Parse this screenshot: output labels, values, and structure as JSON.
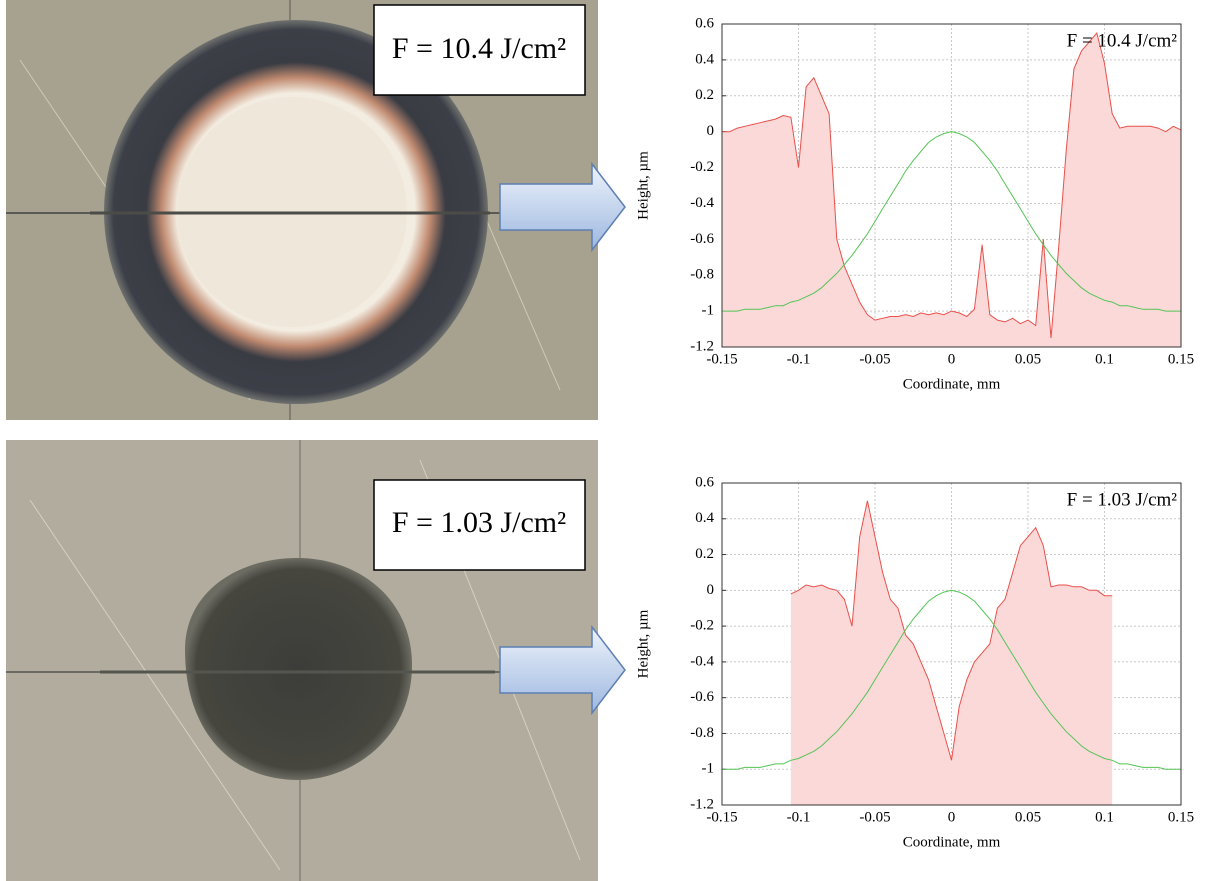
{
  "photos": [
    {
      "label": "F = 10.4 J/cm²"
    },
    {
      "label": "F = 1.03 J/cm²"
    }
  ],
  "chart_data": [
    {
      "type": "line",
      "annotation": "F = 10.4 J/cm²",
      "xlabel": "Coordinate, mm",
      "ylabel": "Height, µm",
      "xlim": [
        -0.15,
        0.15
      ],
      "ylim": [
        -1.2,
        0.6
      ],
      "xticks": [
        -0.15,
        -0.1,
        -0.05,
        0,
        0.05,
        0.1,
        0.15
      ],
      "yticks": [
        0.6,
        0.4,
        0.2,
        0,
        -0.2,
        -0.4,
        -0.6,
        -0.8,
        -1,
        -1.2
      ],
      "grid": true,
      "x": [
        -0.15,
        -0.145,
        -0.14,
        -0.135,
        -0.13,
        -0.125,
        -0.12,
        -0.115,
        -0.11,
        -0.105,
        -0.1,
        -0.095,
        -0.09,
        -0.085,
        -0.08,
        -0.075,
        -0.07,
        -0.065,
        -0.06,
        -0.055,
        -0.05,
        -0.045,
        -0.04,
        -0.035,
        -0.03,
        -0.025,
        -0.02,
        -0.015,
        -0.01,
        -0.005,
        0,
        0.005,
        0.01,
        0.015,
        0.02,
        0.025,
        0.03,
        0.035,
        0.04,
        0.045,
        0.05,
        0.055,
        0.06,
        0.065,
        0.07,
        0.075,
        0.08,
        0.085,
        0.09,
        0.095,
        0.1,
        0.105,
        0.11,
        0.115,
        0.12,
        0.125,
        0.13,
        0.135,
        0.14,
        0.145,
        0.15
      ],
      "series": [
        {
          "color": "#e8504a",
          "fill_color": "#fbd9d9",
          "area": true,
          "values": [
            0,
            0,
            0.02,
            0.03,
            0.04,
            0.05,
            0.06,
            0.07,
            0.09,
            0.08,
            -0.2,
            0.25,
            0.3,
            0.2,
            0.1,
            -0.6,
            -0.75,
            -0.85,
            -0.95,
            -1.02,
            -1.05,
            -1.04,
            -1.03,
            -1.03,
            -1.02,
            -1.03,
            -1.01,
            -1.02,
            -1.01,
            -1.02,
            -1.0,
            -1.01,
            -1.03,
            -0.99,
            -0.63,
            -1.02,
            -1.05,
            -1.06,
            -1.04,
            -1.07,
            -1.05,
            -1.08,
            -0.6,
            -1.15,
            -0.65,
            -0.1,
            0.35,
            0.45,
            0.5,
            0.55,
            0.38,
            0.1,
            0.02,
            0.03,
            0.03,
            0.03,
            0.03,
            0.02,
            0,
            0.03,
            0.01
          ]
        },
        {
          "color": "#55c455",
          "area": false,
          "values": [
            -1,
            -1,
            -1,
            -0.99,
            -0.99,
            -0.99,
            -0.98,
            -0.97,
            -0.97,
            -0.95,
            -0.94,
            -0.92,
            -0.9,
            -0.87,
            -0.83,
            -0.79,
            -0.74,
            -0.69,
            -0.63,
            -0.57,
            -0.5,
            -0.43,
            -0.36,
            -0.29,
            -0.22,
            -0.16,
            -0.11,
            -0.06,
            -0.03,
            -0.01,
            0,
            -0.01,
            -0.03,
            -0.06,
            -0.11,
            -0.16,
            -0.22,
            -0.29,
            -0.36,
            -0.43,
            -0.5,
            -0.57,
            -0.63,
            -0.69,
            -0.74,
            -0.79,
            -0.83,
            -0.87,
            -0.9,
            -0.92,
            -0.94,
            -0.95,
            -0.97,
            -0.97,
            -0.98,
            -0.99,
            -0.99,
            -0.99,
            -1,
            -1,
            -1
          ]
        }
      ]
    },
    {
      "type": "line",
      "annotation": "F = 1.03 J/cm²",
      "xlabel": "Coordinate, mm",
      "ylabel": "Height, µm",
      "xlim": [
        -0.15,
        0.15
      ],
      "ylim": [
        -1.2,
        0.6
      ],
      "xticks": [
        -0.15,
        -0.1,
        -0.05,
        0,
        0.05,
        0.1,
        0.15
      ],
      "yticks": [
        0.6,
        0.4,
        0.2,
        0,
        -0.2,
        -0.4,
        -0.6,
        -0.8,
        -1,
        -1.2
      ],
      "grid": true,
      "x": [
        -0.15,
        -0.145,
        -0.14,
        -0.135,
        -0.13,
        -0.125,
        -0.12,
        -0.115,
        -0.11,
        -0.105,
        -0.1,
        -0.095,
        -0.09,
        -0.085,
        -0.08,
        -0.075,
        -0.07,
        -0.065,
        -0.06,
        -0.055,
        -0.05,
        -0.045,
        -0.04,
        -0.035,
        -0.03,
        -0.025,
        -0.02,
        -0.015,
        -0.01,
        -0.005,
        0,
        0.005,
        0.01,
        0.015,
        0.02,
        0.025,
        0.03,
        0.035,
        0.04,
        0.045,
        0.05,
        0.055,
        0.06,
        0.065,
        0.07,
        0.075,
        0.08,
        0.085,
        0.09,
        0.095,
        0.1,
        0.105,
        0.11,
        0.115,
        0.12,
        0.125,
        0.13,
        0.135,
        0.14,
        0.145,
        0.15
      ],
      "series": [
        {
          "color": "#e8504a",
          "fill_color": "#fbd9d9",
          "area": true,
          "values": [
            null,
            null,
            null,
            null,
            null,
            null,
            null,
            null,
            null,
            -0.02,
            0,
            0.03,
            0.02,
            0.03,
            0.01,
            0,
            -0.05,
            -0.2,
            0.3,
            0.5,
            0.3,
            0.1,
            -0.05,
            -0.1,
            -0.25,
            -0.3,
            -0.4,
            -0.5,
            -0.65,
            -0.8,
            -0.95,
            -0.65,
            -0.5,
            -0.4,
            -0.35,
            -0.3,
            -0.1,
            -0.05,
            0.1,
            0.25,
            0.3,
            0.35,
            0.25,
            0.02,
            0.03,
            0.03,
            0.02,
            0.02,
            0,
            0,
            -0.03,
            -0.03,
            null,
            null,
            null,
            null,
            null,
            null,
            null,
            null,
            null
          ]
        },
        {
          "color": "#55c455",
          "area": false,
          "values": [
            -1,
            -1,
            -1,
            -0.99,
            -0.99,
            -0.99,
            -0.98,
            -0.97,
            -0.97,
            -0.95,
            -0.94,
            -0.92,
            -0.9,
            -0.87,
            -0.83,
            -0.79,
            -0.74,
            -0.69,
            -0.63,
            -0.57,
            -0.5,
            -0.43,
            -0.36,
            -0.29,
            -0.22,
            -0.16,
            -0.11,
            -0.06,
            -0.03,
            -0.01,
            0,
            -0.01,
            -0.03,
            -0.06,
            -0.11,
            -0.16,
            -0.22,
            -0.29,
            -0.36,
            -0.43,
            -0.5,
            -0.57,
            -0.63,
            -0.69,
            -0.74,
            -0.79,
            -0.83,
            -0.87,
            -0.9,
            -0.92,
            -0.94,
            -0.95,
            -0.97,
            -0.97,
            -0.98,
            -0.99,
            -0.99,
            -0.99,
            -1,
            -1,
            -1
          ]
        }
      ]
    }
  ]
}
